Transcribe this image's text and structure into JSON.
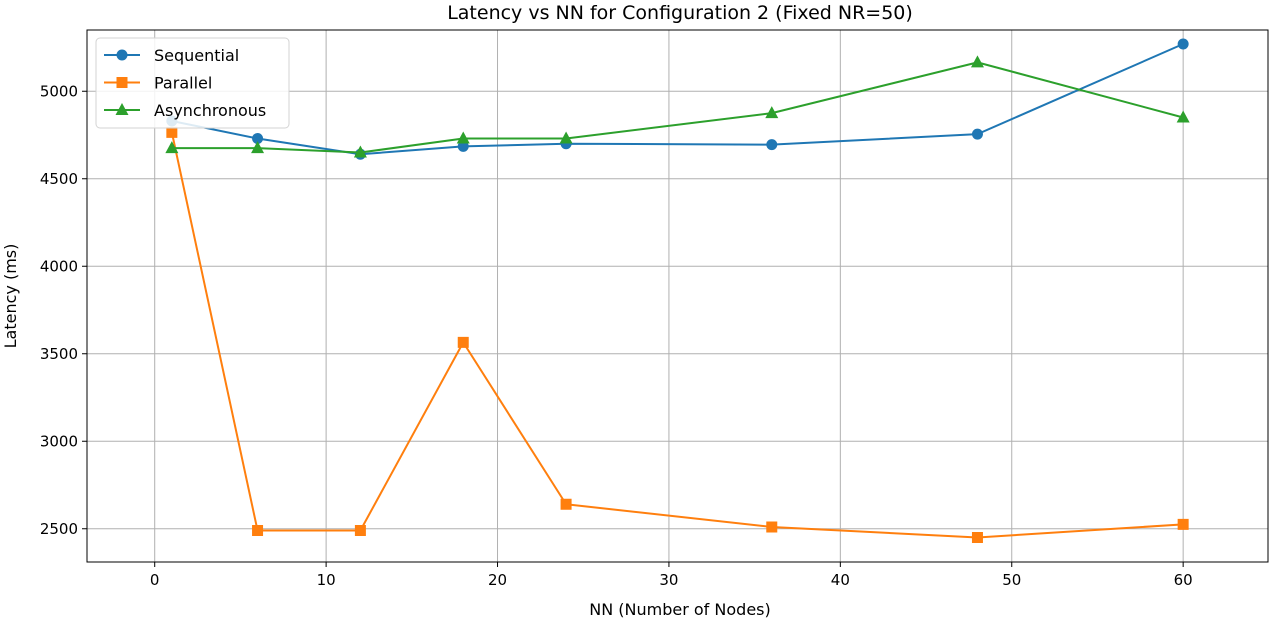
{
  "chart_data": {
    "type": "line",
    "title": "Latency vs NN for Configuration 2 (Fixed NR=50)",
    "xlabel": "NN (Number of Nodes)",
    "ylabel": "Latency (ms)",
    "xlim": [
      -3.95,
      64.95
    ],
    "ylim": [
      2310,
      5350
    ],
    "xticks": [
      0,
      10,
      20,
      30,
      40,
      50,
      60
    ],
    "yticks": [
      2500,
      3000,
      3500,
      4000,
      4500,
      5000
    ],
    "grid": true,
    "legend_position": "top-left",
    "x": [
      1,
      6,
      12,
      18,
      24,
      36,
      48,
      60
    ],
    "series": [
      {
        "name": "Sequential",
        "color": "#1f77b4",
        "marker": "circle",
        "values": [
          4830,
          4730,
          4640,
          4685,
          4700,
          4695,
          4755,
          5270
        ]
      },
      {
        "name": "Parallel",
        "color": "#ff7f0e",
        "marker": "square",
        "values": [
          4765,
          2490,
          2490,
          3565,
          2640,
          2510,
          2450,
          2525
        ]
      },
      {
        "name": "Asynchronous",
        "color": "#2ca02c",
        "marker": "triangle",
        "values": [
          4675,
          4675,
          4650,
          4730,
          4730,
          4875,
          5165,
          4850
        ]
      }
    ]
  }
}
